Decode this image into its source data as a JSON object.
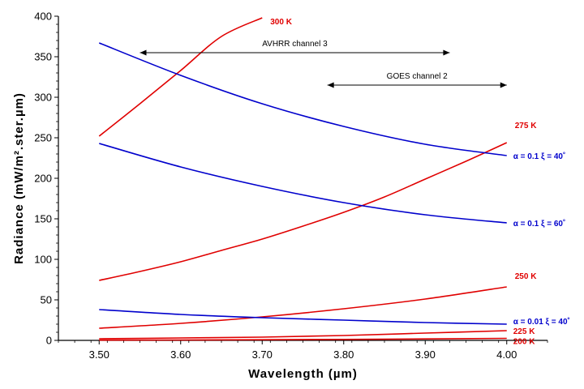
{
  "chart_data": {
    "type": "line",
    "title": "",
    "xlabel": "Wavelength  (µm)",
    "ylabel": "Radiance  (mW/m².ster.µm)",
    "xlim": [
      3.45,
      4.05
    ],
    "ylim": [
      0,
      400
    ],
    "xticks": [
      3.5,
      3.6,
      3.7,
      3.8,
      3.9,
      4.0
    ],
    "xtick_labels": [
      "3.50",
      "3.60",
      "3.70",
      "3.80",
      "3.90",
      "4.00"
    ],
    "yticks": [
      0,
      50,
      100,
      150,
      200,
      250,
      300,
      350,
      400
    ],
    "ytick_labels": [
      "0",
      "50",
      "100",
      "150",
      "200",
      "250",
      "300",
      "350",
      "400"
    ],
    "grid": false,
    "colors": {
      "temperature": "#e00000",
      "reflected": "#0000cc"
    },
    "series": [
      {
        "name": "300 K",
        "group": "temperature",
        "x": [
          3.5,
          3.55,
          3.6,
          3.65,
          3.7
        ],
        "y": [
          252,
          292,
          333,
          375,
          398
        ]
      },
      {
        "name": "275 K",
        "group": "temperature",
        "x": [
          3.5,
          3.55,
          3.6,
          3.65,
          3.7,
          3.75,
          3.8,
          3.85,
          3.9,
          3.95,
          4.0
        ],
        "y": [
          74,
          85,
          97,
          111,
          125,
          141,
          158,
          177,
          199,
          221,
          244
        ]
      },
      {
        "name": "250 K",
        "group": "temperature",
        "x": [
          3.5,
          3.6,
          3.7,
          3.8,
          3.9,
          4.0
        ],
        "y": [
          15,
          21,
          29,
          39,
          51,
          66
        ]
      },
      {
        "name": "225 K",
        "group": "temperature",
        "x": [
          3.5,
          3.6,
          3.7,
          3.8,
          3.9,
          4.0
        ],
        "y": [
          2,
          3,
          4,
          6,
          9,
          12
        ]
      },
      {
        "name": "200 K",
        "group": "temperature",
        "x": [
          3.5,
          3.6,
          3.7,
          3.8,
          3.9,
          4.0
        ],
        "y": [
          0.3,
          0.5,
          0.8,
          1.2,
          1.8,
          2.5
        ]
      },
      {
        "name": "α = 0.1   ξ = 40˚",
        "group": "reflected",
        "x": [
          3.5,
          3.6,
          3.7,
          3.8,
          3.9,
          4.0
        ],
        "y": [
          367,
          327,
          292,
          264,
          242,
          228
        ]
      },
      {
        "name": "α = 0.1   ξ = 60˚",
        "group": "reflected",
        "x": [
          3.5,
          3.6,
          3.7,
          3.8,
          3.9,
          4.0
        ],
        "y": [
          243,
          214,
          190,
          170,
          155,
          145
        ]
      },
      {
        "name": "α = 0.01   ξ = 40˚",
        "group": "reflected",
        "x": [
          3.5,
          3.6,
          3.7,
          3.8,
          3.9,
          4.0
        ],
        "y": [
          38,
          32,
          28,
          25,
          22,
          20
        ]
      }
    ],
    "annotations": [
      {
        "text": "AVHRR channel 3",
        "x_start": 3.55,
        "x_end": 3.93,
        "y": 355
      },
      {
        "text": "GOES channel 2",
        "x_start": 3.78,
        "x_end": 4.0,
        "y": 315
      }
    ]
  }
}
